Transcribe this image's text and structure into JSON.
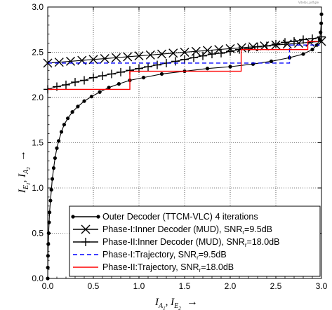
{
  "chart_data": {
    "type": "line",
    "watermark": "Vitelbs_pdf.gle",
    "xaxis": {
      "label_main": "I",
      "label_sub_a": "A",
      "label_sub_a_index": "1",
      "label_sep": ",  ",
      "label_sub_e": "E",
      "label_sub_e_index": "2",
      "arrow": "→",
      "range": [
        0.0,
        3.0
      ],
      "ticks": [
        "0.0",
        "0.5",
        "1.0",
        "1.5",
        "2.0",
        "2.5",
        "3.0"
      ]
    },
    "yaxis": {
      "label_main": "I",
      "label_sub_e": "E",
      "label_sub_e_index": "1",
      "label_sep": ",  ",
      "label_sub_a": "A",
      "label_sub_a_index": "2",
      "arrow": "→",
      "range": [
        0.0,
        3.0
      ],
      "ticks": [
        "0.0",
        "0.5",
        "1.0",
        "1.5",
        "2.0",
        "2.5",
        "3.0"
      ]
    },
    "grid": true,
    "legend_position": "bottom-right",
    "series": [
      {
        "name": "Outer Decoder (TTCM-VLC) 4 iterations",
        "color": "#000000",
        "style": "solid",
        "marker": "dot",
        "points": [
          [
            0.0,
            0.0
          ],
          [
            0.001,
            0.12
          ],
          [
            0.003,
            0.25
          ],
          [
            0.006,
            0.38
          ],
          [
            0.01,
            0.5
          ],
          [
            0.015,
            0.62
          ],
          [
            0.02,
            0.73
          ],
          [
            0.03,
            0.86
          ],
          [
            0.04,
            0.98
          ],
          [
            0.05,
            1.1
          ],
          [
            0.065,
            1.22
          ],
          [
            0.08,
            1.33
          ],
          [
            0.1,
            1.44
          ],
          [
            0.12,
            1.52
          ],
          [
            0.15,
            1.62
          ],
          [
            0.18,
            1.7
          ],
          [
            0.22,
            1.77
          ],
          [
            0.27,
            1.84
          ],
          [
            0.33,
            1.9
          ],
          [
            0.4,
            1.96
          ],
          [
            0.48,
            2.01
          ],
          [
            0.57,
            2.06
          ],
          [
            0.67,
            2.11
          ],
          [
            0.78,
            2.15
          ],
          [
            0.9,
            2.19
          ],
          [
            1.05,
            2.22
          ],
          [
            1.25,
            2.26
          ],
          [
            1.5,
            2.29
          ],
          [
            1.75,
            2.32
          ],
          [
            2.0,
            2.34
          ],
          [
            2.25,
            2.37
          ],
          [
            2.45,
            2.4
          ],
          [
            2.65,
            2.44
          ],
          [
            2.8,
            2.48
          ],
          [
            2.9,
            2.53
          ],
          [
            2.95,
            2.58
          ],
          [
            2.98,
            2.64
          ],
          [
            2.99,
            2.72
          ],
          [
            2.997,
            2.82
          ],
          [
            3.0,
            2.92
          ]
        ]
      },
      {
        "name": "Phase-I:Inner Decoder (MUD), SNR",
        "name_sub": "r",
        "name_tail": "=9.5dB",
        "color": "#000000",
        "style": "solid",
        "marker": "x",
        "points": [
          [
            0.0,
            2.38
          ],
          [
            0.125,
            2.39
          ],
          [
            0.25,
            2.4
          ],
          [
            0.375,
            2.41
          ],
          [
            0.5,
            2.42
          ],
          [
            0.625,
            2.43
          ],
          [
            0.75,
            2.44
          ],
          [
            0.875,
            2.45
          ],
          [
            1.0,
            2.46
          ],
          [
            1.125,
            2.47
          ],
          [
            1.25,
            2.48
          ],
          [
            1.375,
            2.49
          ],
          [
            1.5,
            2.5
          ],
          [
            1.625,
            2.51
          ],
          [
            1.75,
            2.52
          ],
          [
            1.875,
            2.53
          ],
          [
            2.0,
            2.54
          ],
          [
            2.125,
            2.55
          ],
          [
            2.25,
            2.56
          ],
          [
            2.375,
            2.57
          ],
          [
            2.5,
            2.58
          ],
          [
            2.625,
            2.59
          ],
          [
            2.75,
            2.6
          ],
          [
            2.875,
            2.61
          ],
          [
            3.0,
            2.62
          ]
        ]
      },
      {
        "name": "Phase-II:Inner Decoder (MUD), SNR",
        "name_sub": "r",
        "name_tail": "=18.0dB",
        "color": "#000000",
        "style": "solid",
        "marker": "plus",
        "points": [
          [
            0.0,
            2.09
          ],
          [
            0.1,
            2.12
          ],
          [
            0.2,
            2.14
          ],
          [
            0.3,
            2.17
          ],
          [
            0.4,
            2.19
          ],
          [
            0.5,
            2.22
          ],
          [
            0.6,
            2.24
          ],
          [
            0.7,
            2.26
          ],
          [
            0.8,
            2.28
          ],
          [
            0.9,
            2.3
          ],
          [
            1.0,
            2.32
          ],
          [
            1.1,
            2.34
          ],
          [
            1.2,
            2.36
          ],
          [
            1.3,
            2.38
          ],
          [
            1.4,
            2.4
          ],
          [
            1.5,
            2.42
          ],
          [
            1.6,
            2.44
          ],
          [
            1.7,
            2.46
          ],
          [
            1.8,
            2.48
          ],
          [
            1.9,
            2.49
          ],
          [
            2.0,
            2.51
          ],
          [
            2.1,
            2.53
          ],
          [
            2.2,
            2.54
          ],
          [
            2.3,
            2.56
          ],
          [
            2.4,
            2.57
          ],
          [
            2.5,
            2.59
          ],
          [
            2.6,
            2.61
          ],
          [
            2.7,
            2.62
          ],
          [
            2.8,
            2.64
          ],
          [
            2.9,
            2.65
          ],
          [
            3.0,
            2.67
          ]
        ]
      },
      {
        "name": "Phase-I:Trajectory, SNR",
        "name_sub": "r",
        "name_tail": "=9.5dB",
        "color": "#0000ff",
        "style": "dashed",
        "marker": "none",
        "points": [
          [
            0.0,
            2.38
          ],
          [
            2.65,
            2.38
          ],
          [
            2.65,
            2.58
          ],
          [
            2.98,
            2.58
          ]
        ]
      },
      {
        "name": "Phase-II:Trajectory, SNR",
        "name_sub": "r",
        "name_tail": "=18.0dB",
        "color": "#ff0000",
        "style": "solid",
        "marker": "none",
        "points": [
          [
            0.0,
            2.09
          ],
          [
            0.9,
            2.09
          ],
          [
            0.9,
            2.29
          ],
          [
            2.12,
            2.29
          ],
          [
            2.12,
            2.53
          ],
          [
            2.85,
            2.53
          ],
          [
            2.85,
            2.62
          ],
          [
            2.96,
            2.62
          ]
        ]
      }
    ]
  }
}
